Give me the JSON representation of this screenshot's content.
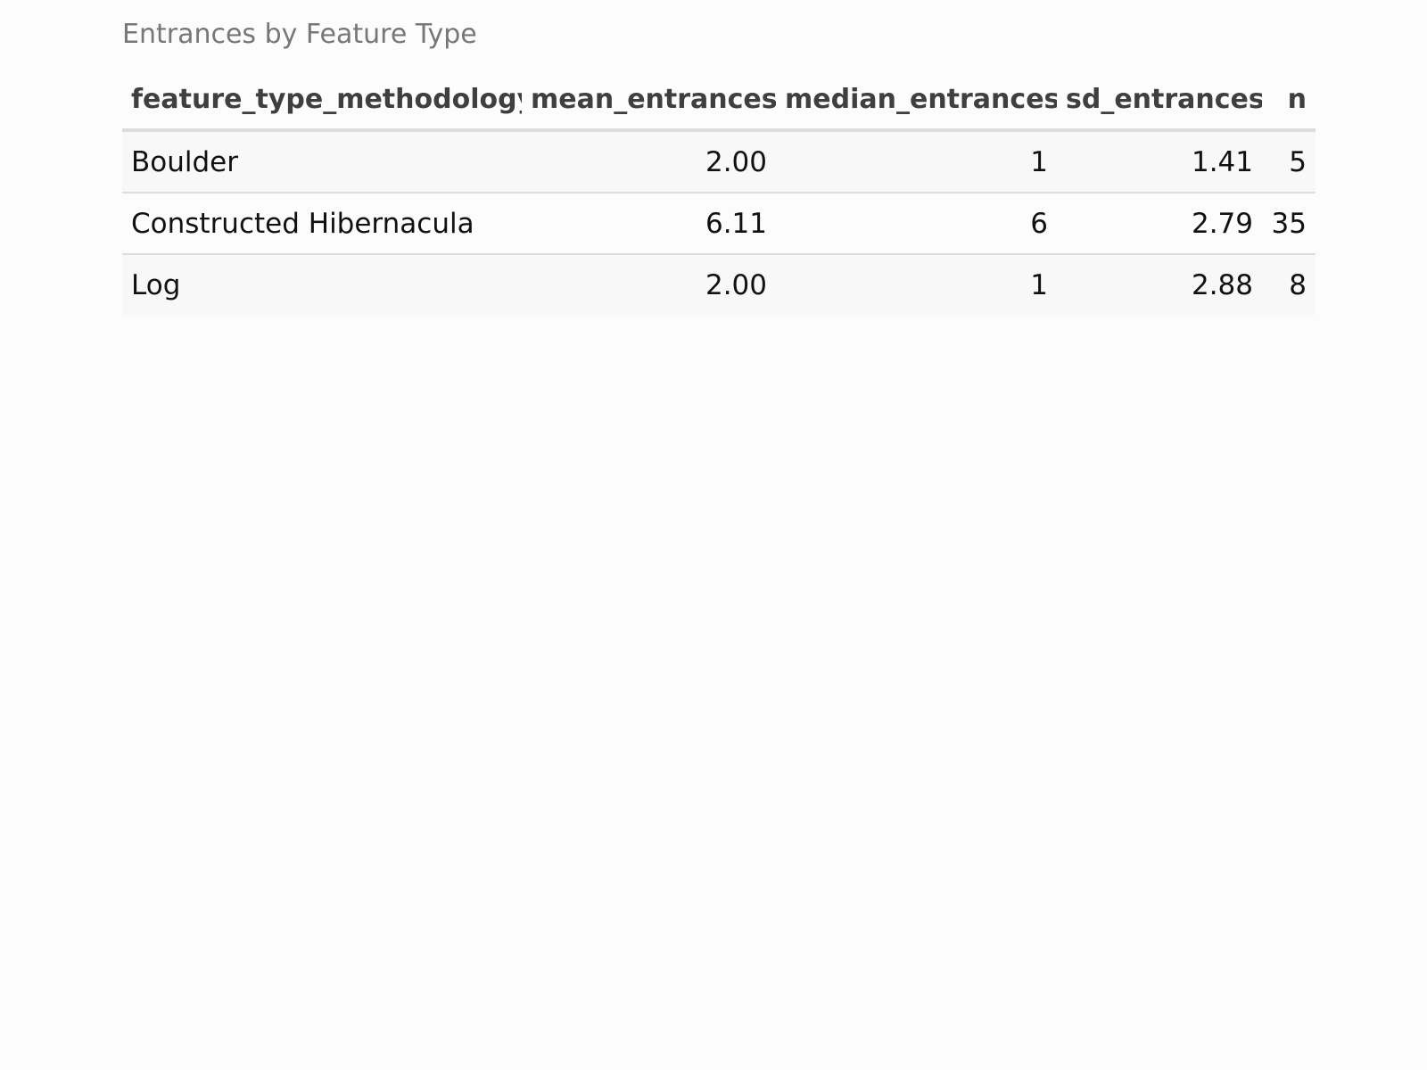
{
  "caption": "Entrances by Feature Type",
  "table": {
    "headers": [
      "feature_type_methodology",
      "mean_entrances",
      "median_entrances",
      "sd_entrances",
      "n"
    ],
    "rows": [
      [
        "Boulder",
        "2.00",
        "1",
        "1.41",
        "5"
      ],
      [
        "Constructed Hibernacula",
        "6.11",
        "6",
        "2.79",
        "35"
      ],
      [
        "Log",
        "2.00",
        "1",
        "2.88",
        "8"
      ]
    ]
  }
}
